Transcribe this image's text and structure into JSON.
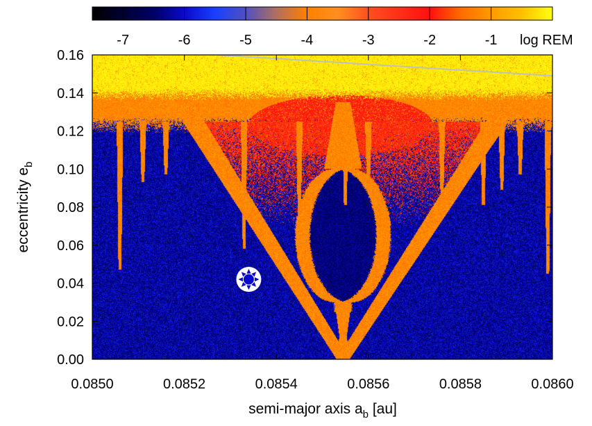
{
  "chart_data": {
    "type": "heatmap",
    "title": "",
    "colorbar": {
      "label": "log REM",
      "ticks": [
        "-7",
        "-6",
        "-5",
        "-4",
        "-3",
        "-2",
        "-1"
      ],
      "range": [
        -7.5,
        0
      ],
      "stops": [
        {
          "v": -7.5,
          "color": "#000000"
        },
        {
          "v": -6.5,
          "color": "#000066"
        },
        {
          "v": -6.0,
          "color": "#0a0acc"
        },
        {
          "v": -5.5,
          "color": "#1a40ff"
        },
        {
          "v": -5.0,
          "color": "#5050c0"
        },
        {
          "v": -4.5,
          "color": "#b07060"
        },
        {
          "v": -4.0,
          "color": "#ff8000"
        },
        {
          "v": -3.5,
          "color": "#ff9020"
        },
        {
          "v": -3.0,
          "color": "#ff5020"
        },
        {
          "v": -2.0,
          "color": "#ff1010"
        },
        {
          "v": -1.5,
          "color": "#ff6a00"
        },
        {
          "v": -1.0,
          "color": "#ff9a00"
        },
        {
          "v": -0.5,
          "color": "#ffc000"
        },
        {
          "v": 0.0,
          "color": "#ffff10"
        }
      ]
    },
    "xaxis": {
      "label_main": "semi-major axis a",
      "label_sub": "b",
      "label_tail": " [au]",
      "range": [
        0.085,
        0.086
      ],
      "ticks": [
        {
          "v": 0.085,
          "label": "0.0850"
        },
        {
          "v": 0.0852,
          "label": "0.0852"
        },
        {
          "v": 0.0854,
          "label": "0.0854"
        },
        {
          "v": 0.0856,
          "label": "0.0856"
        },
        {
          "v": 0.0858,
          "label": "0.0858"
        },
        {
          "v": 0.086,
          "label": "0.0860"
        }
      ]
    },
    "yaxis": {
      "label_main": "eccentricity e",
      "label_sub": "b",
      "range": [
        0.0,
        0.16
      ],
      "ticks": [
        {
          "v": 0.0,
          "label": "0.00"
        },
        {
          "v": 0.02,
          "label": "0.02"
        },
        {
          "v": 0.04,
          "label": "0.04"
        },
        {
          "v": 0.06,
          "label": "0.06"
        },
        {
          "v": 0.08,
          "label": "0.08"
        },
        {
          "v": 0.1,
          "label": "0.10"
        },
        {
          "v": 0.12,
          "label": "0.12"
        },
        {
          "v": 0.14,
          "label": "0.14"
        },
        {
          "v": 0.16,
          "label": "0.16"
        }
      ]
    },
    "regions": {
      "background_level": -6.2,
      "chaotic_cap_level": 0.0,
      "cap_lower_edge_ecc": 0.139,
      "orange_band_level": -1.2,
      "orange_band_ecc": [
        0.123,
        0.139
      ],
      "red_cloud_level": -2.0,
      "red_cloud_center": [
        0.08554,
        0.123
      ],
      "resonance_separatrix_level": -1.2,
      "resonance_center_a": 0.085545,
      "resonance_top_ecc": 0.1,
      "resonance_apex_ecc": 0.135,
      "resonance_pinch_ecc": 0.03,
      "v_wedge_vertex": [
        0.085545,
        0.0
      ],
      "v_wedge_top_ecc": 0.125,
      "v_wedge_left_a": 0.08522,
      "v_wedge_right_a": 0.08588,
      "spikes": [
        {
          "a": 0.08506,
          "tip_ecc": 0.047,
          "level": -1.2
        },
        {
          "a": 0.08511,
          "tip_ecc": 0.093,
          "level": -1.2
        },
        {
          "a": 0.08516,
          "tip_ecc": 0.097,
          "level": -1.2
        },
        {
          "a": 0.08533,
          "tip_ecc": 0.058,
          "level": -1.2
        },
        {
          "a": 0.08545,
          "tip_ecc": 0.071,
          "level": -1.2
        },
        {
          "a": 0.08555,
          "tip_ecc": 0.081,
          "level": -1.2
        },
        {
          "a": 0.0856,
          "tip_ecc": 0.089,
          "level": -1.2
        },
        {
          "a": 0.08576,
          "tip_ecc": 0.085,
          "level": -1.2
        },
        {
          "a": 0.08585,
          "tip_ecc": 0.081,
          "level": -1.2
        },
        {
          "a": 0.08589,
          "tip_ecc": 0.089,
          "level": -1.2
        },
        {
          "a": 0.08593,
          "tip_ecc": 0.097,
          "level": -1.2
        },
        {
          "a": 0.08599,
          "tip_ecc": 0.045,
          "level": -1.2
        }
      ]
    },
    "grid": true,
    "annotations": [
      {
        "type": "line",
        "color": "#c0c0c0",
        "from": [
          0.08527,
          0.16
        ],
        "to": [
          0.086,
          0.149
        ]
      },
      {
        "type": "marker",
        "symbol": "sun",
        "x": 0.08534,
        "y": 0.042
      }
    ]
  }
}
